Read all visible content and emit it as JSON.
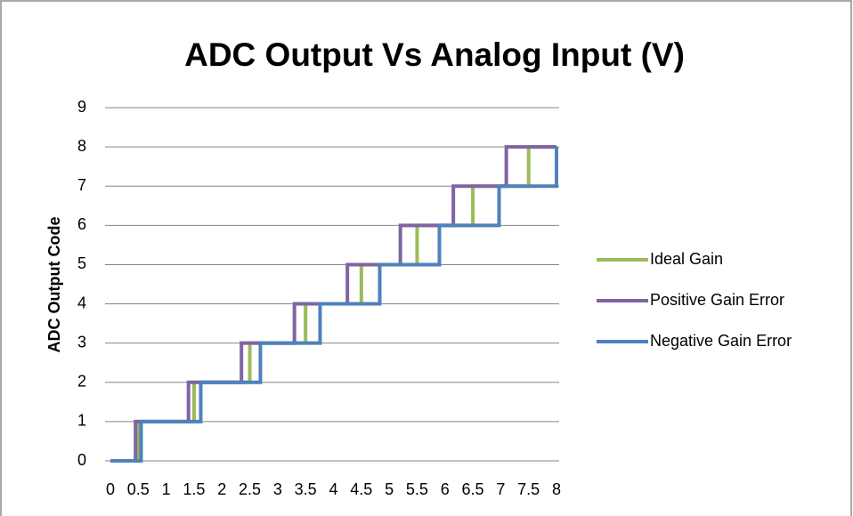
{
  "chart_data": {
    "type": "step-line",
    "title": "ADC Output Vs Analog Input (V)",
    "y_label": "ADC Output Code",
    "xlim": [
      0,
      8
    ],
    "xticks": [
      0,
      0.5,
      1,
      1.5,
      2,
      2.5,
      3,
      3.5,
      4,
      4.5,
      5,
      5.5,
      6,
      6.5,
      7,
      7.5,
      8
    ],
    "ylim": [
      0,
      9
    ],
    "yticks": [
      0,
      1,
      2,
      3,
      4,
      5,
      6,
      7,
      8,
      9
    ],
    "grid": true,
    "legend": "right",
    "series": [
      {
        "name": "Ideal Gain",
        "color": "#9bbb59",
        "x": [
          0,
          0.5,
          0.5,
          1.5,
          1.5,
          2.5,
          2.5,
          3.5,
          3.5,
          4.5,
          4.5,
          5.5,
          5.5,
          6.5,
          6.5,
          7.5,
          7.5,
          8
        ],
        "values": [
          0,
          0,
          1,
          1,
          2,
          2,
          3,
          3,
          4,
          4,
          5,
          5,
          6,
          6,
          7,
          7,
          8,
          8
        ]
      },
      {
        "name": "Positive Gain Error",
        "color": "#8064a2",
        "x": [
          0,
          0.45,
          0.45,
          1.4,
          1.4,
          2.35,
          2.35,
          3.3,
          3.3,
          4.25,
          4.25,
          5.2,
          5.2,
          6.15,
          6.15,
          7.1,
          7.1,
          8
        ],
        "values": [
          0,
          0,
          1,
          1,
          2,
          2,
          3,
          3,
          4,
          4,
          5,
          5,
          6,
          6,
          7,
          7,
          8,
          8
        ]
      },
      {
        "name": "Negative Gain Error",
        "color": "#4f81bd",
        "x": [
          0,
          0.55,
          0.55,
          1.62,
          1.62,
          2.69,
          2.69,
          3.76,
          3.76,
          4.83,
          4.83,
          5.9,
          5.9,
          6.97,
          6.97,
          8,
          8
        ],
        "values": [
          0,
          0,
          1,
          1,
          2,
          2,
          3,
          3,
          4,
          4,
          5,
          5,
          6,
          6,
          7,
          7,
          8
        ]
      }
    ]
  }
}
